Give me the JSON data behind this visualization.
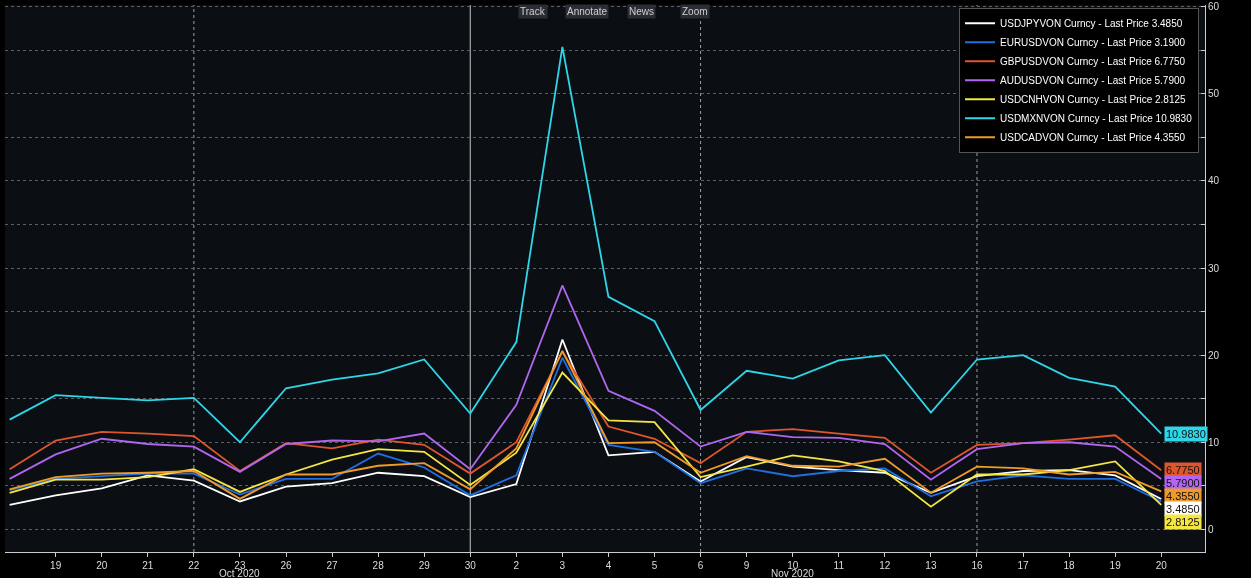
{
  "chart_data": {
    "type": "line",
    "categories": [
      null,
      "19",
      "20",
      "21",
      "22",
      "23",
      "26",
      "27",
      "28",
      "29",
      "30",
      "2",
      "3",
      "4",
      "5",
      "6",
      "9",
      "10",
      "11",
      "12",
      "13",
      "16",
      "17",
      "18",
      "19",
      "20"
    ],
    "series": [
      {
        "name": "USDJPYVON Curncy - Last Price 3.4850",
        "color": "#ffffff",
        "values": [
          2.8,
          3.9,
          4.7,
          6.2,
          5.6,
          3.2,
          4.9,
          5.3,
          6.5,
          6.1,
          3.7,
          5.2,
          21.8,
          8.5,
          8.9,
          5.5,
          8.3,
          7.2,
          6.8,
          6.5,
          4.2,
          6.1,
          6.7,
          6.8,
          6.2,
          3.485
        ],
        "value_labels": [
          null,
          null,
          null,
          null,
          null,
          null,
          null,
          null,
          null,
          null,
          null,
          null,
          null,
          null,
          null,
          null,
          null,
          null,
          null,
          null,
          null,
          null,
          null,
          null,
          null,
          "3.4850"
        ]
      },
      {
        "name": "EURUSDVON Curncy - Last Price 3.1900",
        "color": "#1f6fe0",
        "values": [
          4.5,
          5.8,
          6.1,
          6.4,
          6.4,
          4.0,
          5.8,
          5.8,
          8.7,
          7.1,
          3.9,
          6.2,
          19.7,
          9.7,
          8.9,
          5.3,
          7.0,
          6.1,
          6.7,
          7.0,
          3.8,
          5.5,
          6.2,
          5.8,
          5.8,
          3.2
        ]
      },
      {
        "name": "GBPUSDVON Curncy - Last Price 6.7750",
        "color": "#e0562c",
        "values": [
          6.9,
          10.2,
          11.2,
          11.0,
          10.7,
          6.7,
          9.9,
          9.3,
          10.3,
          9.7,
          6.4,
          10.0,
          20.4,
          11.8,
          10.4,
          7.6,
          11.2,
          11.5,
          11.0,
          10.5,
          6.5,
          9.7,
          9.9,
          10.3,
          10.8,
          6.775
        ],
        "value_labels": [
          null,
          null,
          null,
          null,
          null,
          null,
          null,
          null,
          null,
          null,
          null,
          null,
          null,
          null,
          null,
          null,
          null,
          null,
          null,
          null,
          null,
          null,
          null,
          null,
          null,
          "6.7750"
        ]
      },
      {
        "name": "AUDUSDVON Curncy - Last Price 5.7900",
        "color": "#b266f0",
        "values": [
          5.8,
          8.6,
          10.4,
          9.8,
          9.5,
          6.6,
          9.8,
          10.2,
          10.1,
          11.0,
          6.9,
          14.3,
          28.0,
          15.9,
          13.6,
          9.5,
          11.2,
          10.6,
          10.5,
          9.8,
          5.7,
          9.2,
          9.9,
          10.0,
          9.5,
          5.79
        ],
        "value_labels": [
          null,
          null,
          null,
          null,
          null,
          null,
          null,
          null,
          null,
          null,
          null,
          null,
          null,
          null,
          null,
          null,
          null,
          null,
          null,
          null,
          null,
          null,
          null,
          null,
          null,
          "5.7900"
        ]
      },
      {
        "name": "USDCNHVON Curncy - Last Price 2.8125",
        "color": "#f5e642",
        "values": [
          4.2,
          5.7,
          5.7,
          6.0,
          6.9,
          4.3,
          6.3,
          8.0,
          9.2,
          8.9,
          5.1,
          8.8,
          18.0,
          12.5,
          12.3,
          6.0,
          7.2,
          8.5,
          7.8,
          6.7,
          2.6,
          6.3,
          6.3,
          6.8,
          7.8,
          2.8125
        ],
        "value_labels": [
          null,
          null,
          null,
          null,
          null,
          null,
          null,
          null,
          null,
          null,
          null,
          null,
          null,
          null,
          null,
          null,
          null,
          null,
          null,
          null,
          null,
          null,
          null,
          null,
          null,
          "2.8125"
        ]
      },
      {
        "name": "USDMXNVON Curncy - Last Price 10.9830",
        "color": "#2fd6e8",
        "values": [
          12.6,
          15.4,
          15.1,
          14.8,
          15.1,
          10.0,
          16.2,
          17.2,
          17.9,
          19.5,
          13.3,
          21.5,
          55.4,
          26.7,
          23.9,
          13.7,
          18.2,
          17.3,
          19.4,
          20.0,
          13.4,
          19.5,
          20.0,
          17.4,
          16.4,
          10.983
        ],
        "value_labels": [
          null,
          null,
          null,
          null,
          null,
          null,
          null,
          null,
          null,
          null,
          null,
          null,
          null,
          null,
          null,
          null,
          null,
          null,
          null,
          null,
          null,
          null,
          null,
          null,
          null,
          "10.9830"
        ]
      },
      {
        "name": "USDCADVON Curncy - Last Price 4.3550",
        "color": "#f09a2a",
        "values": [
          4.6,
          6.0,
          6.4,
          6.5,
          6.7,
          3.5,
          6.3,
          6.3,
          7.3,
          7.6,
          4.6,
          9.3,
          20.5,
          9.9,
          10.0,
          6.5,
          8.4,
          7.3,
          7.2,
          8.1,
          4.2,
          7.2,
          7.0,
          6.3,
          6.6,
          4.355
        ],
        "value_labels": [
          null,
          null,
          null,
          null,
          null,
          null,
          null,
          null,
          null,
          null,
          null,
          null,
          null,
          null,
          null,
          null,
          null,
          null,
          null,
          null,
          null,
          null,
          null,
          null,
          null,
          "4.3550"
        ]
      }
    ],
    "ylim": [
      -2.6,
      60.2
    ],
    "yticks": [
      0,
      {
        "value": 5,
        "label": null
      },
      10,
      {
        "value": 15,
        "label": null
      },
      20,
      {
        "value": 25,
        "label": null
      },
      30,
      {
        "value": 35,
        "label": null
      },
      40,
      {
        "value": 45,
        "label": null
      },
      50,
      {
        "value": 55,
        "label": null
      },
      60
    ],
    "grid": "y",
    "ref_lines": [
      {
        "axis": "x",
        "value": "22",
        "line_style": "dotted",
        "color": "#9aa0a8"
      },
      {
        "axis": "x",
        "value": "30",
        "line_style": "solid",
        "color": "#c8c8c8"
      },
      {
        "axis": "x",
        "value": "6",
        "line_style": "dotted",
        "color": "#9aa0a8"
      },
      {
        "axis": "x",
        "value": "16",
        "line_style": "dotted",
        "color": "#9aa0a8"
      }
    ],
    "annotations": [
      "Oct 2020",
      "Nov 2020",
      "Track",
      "Annotate",
      "News",
      "Zoom"
    ],
    "legend": "top right",
    "marker": "none",
    "line_style": "solid"
  }
}
